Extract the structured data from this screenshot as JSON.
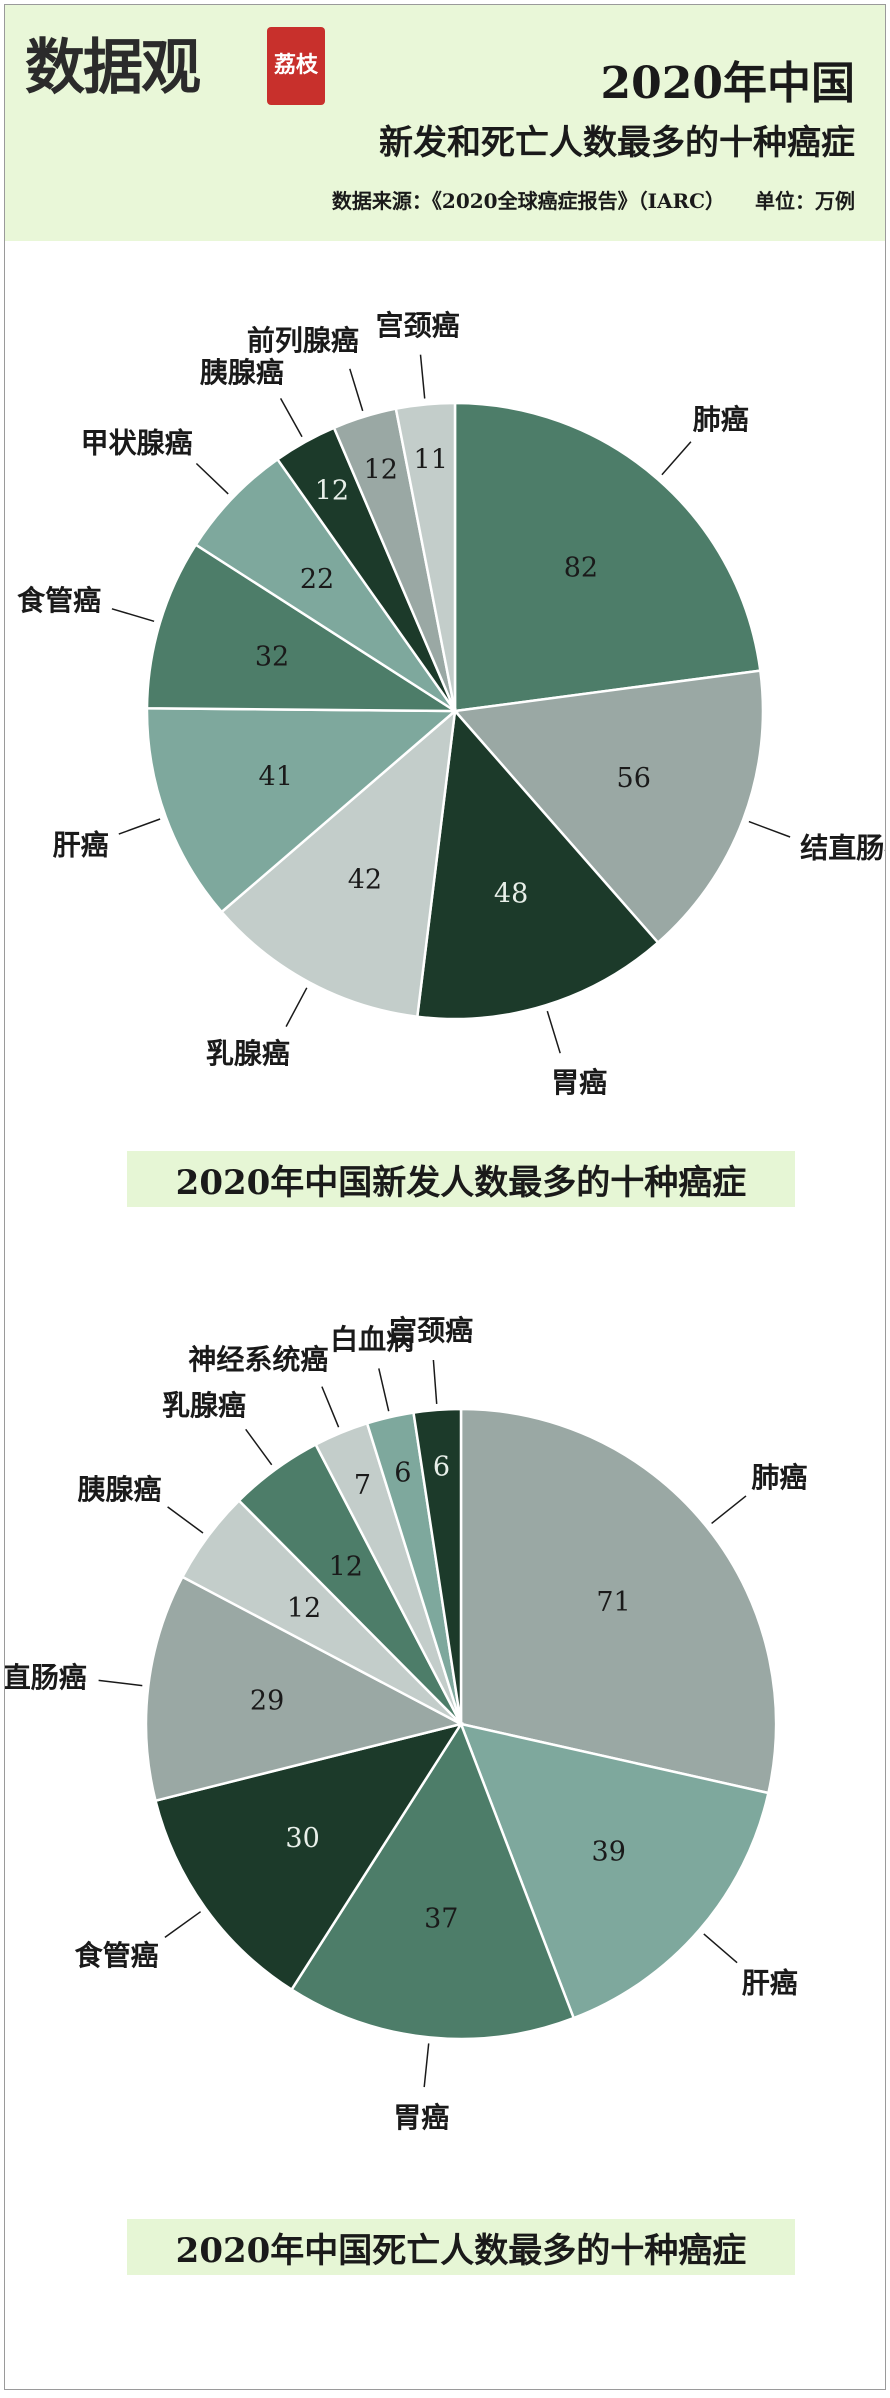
{
  "header": {
    "logo_text": "数据观",
    "logo_badge": "荔枝",
    "title_line1": "2020年中国",
    "title_line2": "新发和死亡人数最多的十种癌症",
    "source": "数据来源：《2020全球癌症报告》（IARC）",
    "unit": "单位：万例"
  },
  "colors": {
    "header_bg": "#e9f7d8",
    "caption_bg": "#e6f6d5",
    "dark_green": "#1c3a2a",
    "mid_green": "#4d7d69",
    "grey_green": "#9aa8a4",
    "light_sage": "#7ea89d",
    "pale_grey": "#c3cdca"
  },
  "chart_data": [
    {
      "type": "pie",
      "title": "2020年中国新发人数最多的十种癌症",
      "categories": [
        "肺癌",
        "结直肠癌",
        "胃癌",
        "乳腺癌",
        "肝癌",
        "食管癌",
        "甲状腺癌",
        "胰腺癌",
        "前列腺癌",
        "宫颈癌"
      ],
      "values": [
        82,
        56,
        48,
        42,
        41,
        32,
        22,
        12,
        12,
        11
      ],
      "colors": [
        "#4d7d69",
        "#9aa8a4",
        "#1c3a2a",
        "#c3cdca",
        "#7ea89d",
        "#4d7d69",
        "#7ea89d",
        "#1c3a2a",
        "#9aa8a4",
        "#c3cdca"
      ]
    },
    {
      "type": "pie",
      "title": "2020年中国死亡人数最多的十种癌症",
      "categories": [
        "肺癌",
        "肝癌",
        "胃癌",
        "食管癌",
        "结直肠癌",
        "胰腺癌",
        "乳腺癌",
        "神经系统癌",
        "白血病",
        "宫颈癌"
      ],
      "values": [
        71,
        39,
        37,
        30,
        29,
        12,
        12,
        7,
        6,
        6
      ],
      "colors": [
        "#9aa8a4",
        "#7ea89d",
        "#4d7d69",
        "#1c3a2a",
        "#9aa8a4",
        "#c3cdca",
        "#4d7d69",
        "#c3cdca",
        "#7ea89d",
        "#1c3a2a"
      ]
    }
  ]
}
